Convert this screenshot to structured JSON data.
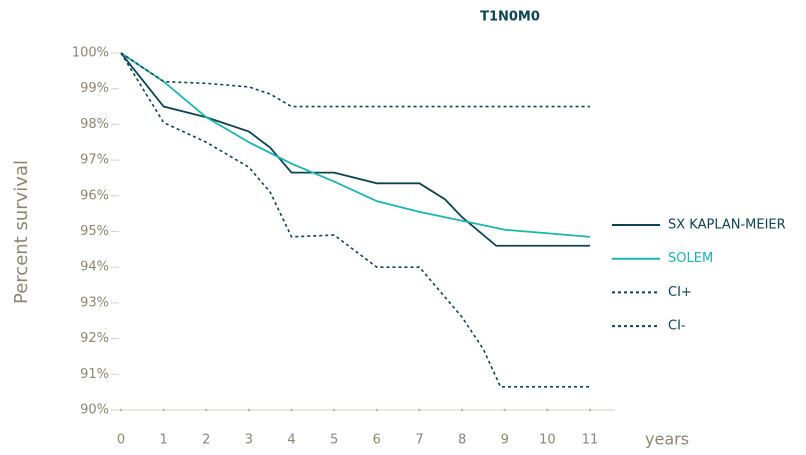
{
  "chart_data": {
    "type": "line",
    "title": "T1N0M0",
    "ylabel": "Percent survival",
    "xlabel": "years",
    "xlim": [
      0,
      11
    ],
    "xticks": [
      0,
      1,
      2,
      3,
      4,
      5,
      6,
      7,
      8,
      9,
      10,
      11
    ],
    "ylim": [
      90,
      100
    ],
    "yticks": [
      {
        "value": 90,
        "label": "90%"
      },
      {
        "value": 91,
        "label": "91%"
      },
      {
        "value": 92,
        "label": "92%"
      },
      {
        "value": 93,
        "label": "93%"
      },
      {
        "value": 94,
        "label": "94%"
      },
      {
        "value": 95,
        "label": "95%"
      },
      {
        "value": 96,
        "label": "96%"
      },
      {
        "value": 97,
        "label": "97%"
      },
      {
        "value": 98,
        "label": "98%"
      },
      {
        "value": 99,
        "label": "99%"
      },
      {
        "value": 100,
        "label": "100%"
      }
    ],
    "legend": "right",
    "series": [
      {
        "name": "SX KAPLAN-MEIER",
        "color": "#0d4454",
        "line_style": "solid",
        "x": [
          0,
          1,
          2,
          3,
          3.5,
          4,
          5,
          6,
          7,
          7.6,
          8,
          8.8,
          11
        ],
        "values": [
          100,
          98.5,
          98.2,
          97.8,
          97.35,
          96.65,
          96.65,
          96.35,
          96.35,
          95.9,
          95.4,
          94.6,
          94.6
        ]
      },
      {
        "name": "SOLEM",
        "color": "#1bb5b0",
        "line_style": "solid",
        "x": [
          0,
          1,
          2,
          3,
          4,
          5,
          6,
          7,
          8,
          9,
          10,
          11
        ],
        "values": [
          100,
          99.2,
          98.2,
          97.5,
          96.9,
          96.4,
          95.85,
          95.55,
          95.3,
          95.05,
          94.95,
          94.85
        ]
      },
      {
        "name": "CI+",
        "color": "#0d4454",
        "line_style": "dashed",
        "x": [
          0,
          1,
          2,
          3,
          3.5,
          4,
          5,
          11
        ],
        "values": [
          100,
          99.2,
          99.15,
          99.05,
          98.85,
          98.5,
          98.5,
          98.5
        ]
      },
      {
        "name": "CI-",
        "color": "#0d4454",
        "line_style": "dashed",
        "x": [
          0,
          1,
          2,
          3,
          3.5,
          4,
          5,
          6,
          7,
          8,
          8.5,
          8.9,
          11
        ],
        "values": [
          100,
          98.05,
          97.5,
          96.8,
          96.1,
          94.85,
          94.9,
          94.0,
          94.0,
          92.6,
          91.7,
          90.65,
          90.65
        ]
      }
    ]
  }
}
